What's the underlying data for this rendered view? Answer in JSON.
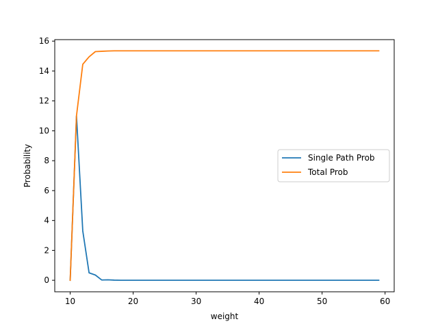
{
  "chart_data": {
    "type": "line",
    "title": "",
    "xlabel": "weight",
    "ylabel": "Probability",
    "xlim": [
      7.55,
      61.45
    ],
    "ylim": [
      -0.77,
      16.1
    ],
    "xticks": [
      10,
      20,
      30,
      40,
      50,
      60
    ],
    "yticks": [
      0,
      2,
      4,
      6,
      8,
      10,
      12,
      14,
      16
    ],
    "grid": false,
    "legend_position": "center-right",
    "series": [
      {
        "name": "Single Path Prob",
        "color": "#1f77b4",
        "x": [
          10,
          11,
          12,
          13,
          14,
          15,
          16,
          17,
          18,
          19,
          20,
          25,
          30,
          35,
          40,
          45,
          50,
          55,
          59
        ],
        "y": [
          0.0,
          11.0,
          3.3,
          0.5,
          0.35,
          0.02,
          0.03,
          0.01,
          0.0,
          0.0,
          0.0,
          0.0,
          0.0,
          0.0,
          0.0,
          0.0,
          0.0,
          0.0,
          0.0
        ]
      },
      {
        "name": "Total Prob",
        "color": "#ff7f0e",
        "x": [
          10,
          11,
          12,
          13,
          14,
          15,
          16,
          17,
          18,
          19,
          20,
          25,
          30,
          35,
          40,
          45,
          50,
          55,
          59
        ],
        "y": [
          0.0,
          11.0,
          14.45,
          14.95,
          15.3,
          15.32,
          15.34,
          15.35,
          15.35,
          15.35,
          15.35,
          15.35,
          15.35,
          15.35,
          15.35,
          15.35,
          15.35,
          15.35,
          15.35
        ]
      }
    ]
  }
}
